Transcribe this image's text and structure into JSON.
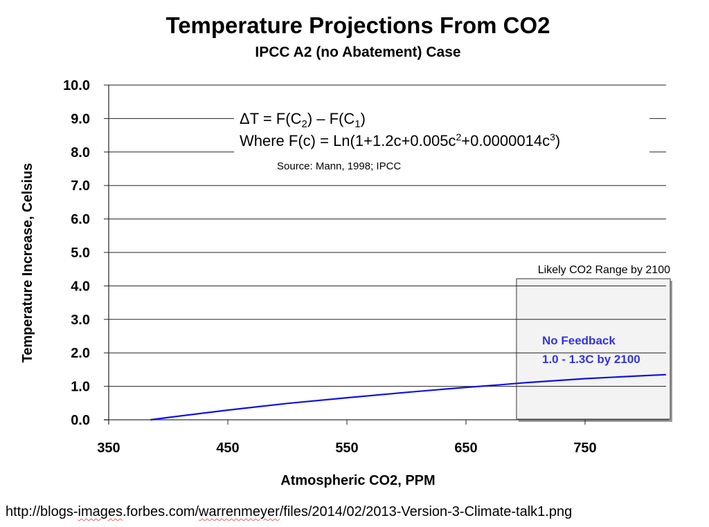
{
  "chart_data": {
    "type": "line",
    "title": "Temperature Projections From CO2",
    "subtitle": "IPCC A2 (no Abatement) Case",
    "xlabel": "Atmospheric CO2, PPM",
    "ylabel": "Temperature Increase, Celsius",
    "xlim": [
      350,
      820
    ],
    "ylim": [
      0,
      10
    ],
    "x_ticks": [
      350,
      450,
      550,
      650,
      750
    ],
    "x_tick_labels": [
      "350",
      "450",
      "550",
      "650",
      "750"
    ],
    "y_ticks": [
      0,
      1,
      2,
      3,
      4,
      5,
      6,
      7,
      8,
      9,
      10
    ],
    "y_tick_labels": [
      "0.0",
      "1.0",
      "2.0",
      "3.0",
      "4.0",
      "5.0",
      "6.0",
      "7.0",
      "8.0",
      "9.0",
      "10.0"
    ],
    "grid": "horizontal",
    "series": [
      {
        "name": "No Feedback",
        "color": "#1010e8",
        "x": [
          385,
          400,
          450,
          500,
          550,
          600,
          650,
          680,
          700,
          750,
          800,
          818
        ],
        "y": [
          0.0,
          0.07,
          0.29,
          0.49,
          0.66,
          0.82,
          0.97,
          1.05,
          1.11,
          1.23,
          1.32,
          1.35
        ]
      }
    ],
    "annotations": {
      "equation_line1": "ΔT = F(C",
      "equation_line1_sub1": "2",
      "equation_line1_mid": ") – F(C",
      "equation_line1_sub2": "1",
      "equation_line1_end": ")",
      "equation_line2_a": "Where F(c) = Ln(1+1.2c+0.005c",
      "equation_line2_sup1": "2",
      "equation_line2_b": "+0.0000014c",
      "equation_line2_sup2": "3",
      "equation_line2_c": ")",
      "source": "Source:  Mann,  1998; IPCC",
      "range_box_label": "Likely CO2 Range by 2100",
      "range_box_x": [
        693,
        820
      ],
      "feedback_line1": "No Feedback",
      "feedback_line2": "1.0 - 1.3C by 2100",
      "feedback_color": "#3333dd"
    }
  },
  "footer": {
    "url_prefix": "http://blogs-",
    "url_images": "images",
    "url_mid": ".forbes.com/",
    "url_user": "warrenmeyer",
    "url_suffix": "/files/2014/02/2013-Version-3-Climate-talk1.png"
  }
}
